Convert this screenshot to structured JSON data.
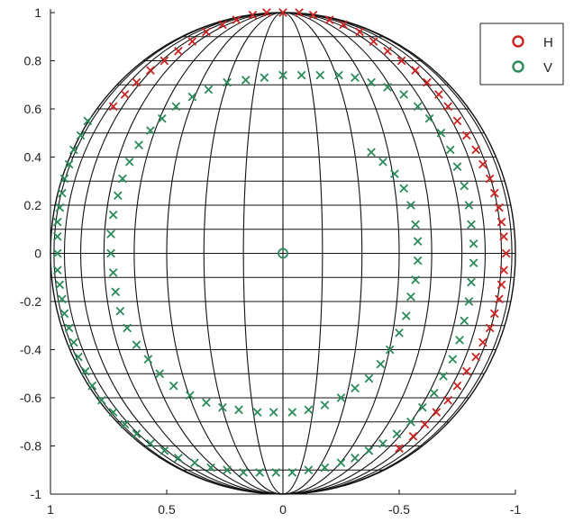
{
  "chart_data": {
    "type": "scatter",
    "title": "",
    "xlabel": "",
    "ylabel": "",
    "xlim": [
      1,
      -1
    ],
    "ylim": [
      -1,
      1
    ],
    "x_reversed": true,
    "x_ticks": [
      1,
      0.5,
      0,
      -0.5,
      -1
    ],
    "x_tick_labels": [
      "1",
      "0.5",
      "0",
      "-0.5",
      "-1"
    ],
    "y_ticks": [
      1,
      0.8,
      0.6,
      0.4,
      0.2,
      0,
      -0.2,
      -0.4,
      -0.6,
      -0.8,
      -1
    ],
    "y_tick_labels": [
      "1",
      "0.8",
      "0.6",
      "0.4",
      "0.2",
      "0",
      "-0.2",
      "-0.4",
      "-0.6",
      "-0.8",
      "-1"
    ],
    "grid": "sphere wireframe (meridians and latitude lines)",
    "legend_position": "top-right",
    "legend": [
      {
        "label": "H",
        "marker": "o",
        "color": "#cc2222"
      },
      {
        "label": "V",
        "marker": "o",
        "color": "#2a8a5a"
      }
    ],
    "series": [
      {
        "name": "H",
        "color": "#cc2222",
        "marker": "x",
        "points": [
          [
            0.73,
            0.61
          ],
          [
            0.68,
            0.66
          ],
          [
            0.63,
            0.71
          ],
          [
            0.57,
            0.76
          ],
          [
            0.51,
            0.8
          ],
          [
            0.45,
            0.84
          ],
          [
            0.39,
            0.88
          ],
          [
            0.33,
            0.92
          ],
          [
            0.26,
            0.95
          ],
          [
            0.2,
            0.97
          ],
          [
            0.13,
            0.99
          ],
          [
            0.07,
            1.0
          ],
          [
            0.0,
            1.0
          ],
          [
            -0.07,
            1.0
          ],
          [
            -0.13,
            0.99
          ],
          [
            -0.2,
            0.97
          ],
          [
            -0.26,
            0.95
          ],
          [
            -0.33,
            0.92
          ],
          [
            -0.39,
            0.88
          ],
          [
            -0.45,
            0.84
          ],
          [
            -0.51,
            0.8
          ],
          [
            -0.57,
            0.76
          ],
          [
            -0.62,
            0.71
          ],
          [
            -0.67,
            0.66
          ],
          [
            -0.71,
            0.61
          ],
          [
            -0.75,
            0.55
          ],
          [
            -0.79,
            0.49
          ],
          [
            -0.83,
            0.43
          ],
          [
            -0.86,
            0.37
          ],
          [
            -0.89,
            0.31
          ],
          [
            -0.91,
            0.25
          ],
          [
            -0.93,
            0.19
          ],
          [
            -0.94,
            0.13
          ],
          [
            -0.95,
            0.07
          ],
          [
            -0.96,
            0.0
          ],
          [
            -0.95,
            -0.07
          ],
          [
            -0.94,
            -0.13
          ],
          [
            -0.93,
            -0.19
          ],
          [
            -0.91,
            -0.25
          ],
          [
            -0.89,
            -0.31
          ],
          [
            -0.86,
            -0.37
          ],
          [
            -0.83,
            -0.43
          ],
          [
            -0.79,
            -0.49
          ],
          [
            -0.75,
            -0.55
          ],
          [
            -0.71,
            -0.61
          ],
          [
            -0.66,
            -0.66
          ],
          [
            -0.61,
            -0.71
          ],
          [
            -0.56,
            -0.76
          ],
          [
            -0.5,
            -0.81
          ]
        ]
      },
      {
        "name": "V",
        "color": "#2a8a5a",
        "marker": "x",
        "points": [
          [
            0.84,
            0.55
          ],
          [
            0.87,
            0.49
          ],
          [
            0.9,
            0.43
          ],
          [
            0.92,
            0.37
          ],
          [
            0.94,
            0.31
          ],
          [
            0.95,
            0.25
          ],
          [
            0.96,
            0.19
          ],
          [
            0.97,
            0.13
          ],
          [
            0.97,
            0.07
          ],
          [
            0.97,
            0.0
          ],
          [
            0.97,
            -0.07
          ],
          [
            0.96,
            -0.13
          ],
          [
            0.95,
            -0.19
          ],
          [
            0.94,
            -0.25
          ],
          [
            0.92,
            -0.31
          ],
          [
            0.9,
            -0.37
          ],
          [
            0.88,
            -0.43
          ],
          [
            0.85,
            -0.49
          ],
          [
            0.82,
            -0.55
          ],
          [
            0.78,
            -0.61
          ],
          [
            0.73,
            -0.66
          ],
          [
            0.68,
            -0.71
          ],
          [
            0.63,
            -0.75
          ],
          [
            0.57,
            -0.79
          ],
          [
            0.51,
            -0.82
          ],
          [
            0.45,
            -0.85
          ],
          [
            0.38,
            -0.87
          ],
          [
            0.31,
            -0.89
          ],
          [
            0.24,
            -0.9
          ],
          [
            0.17,
            -0.91
          ],
          [
            0.1,
            -0.91
          ],
          [
            0.03,
            -0.91
          ],
          [
            -0.04,
            -0.91
          ],
          [
            -0.11,
            -0.9
          ],
          [
            -0.18,
            -0.89
          ],
          [
            -0.25,
            -0.87
          ],
          [
            -0.31,
            -0.85
          ],
          [
            -0.37,
            -0.82
          ],
          [
            -0.43,
            -0.79
          ],
          [
            -0.49,
            -0.75
          ],
          [
            -0.55,
            -0.7
          ],
          [
            -0.6,
            -0.64
          ],
          [
            -0.65,
            -0.58
          ],
          [
            -0.69,
            -0.51
          ],
          [
            -0.73,
            -0.44
          ],
          [
            -0.76,
            -0.36
          ],
          [
            -0.78,
            -0.28
          ],
          [
            -0.8,
            -0.2
          ],
          [
            -0.81,
            -0.12
          ],
          [
            -0.82,
            -0.04
          ],
          [
            -0.82,
            0.04
          ],
          [
            -0.81,
            0.12
          ],
          [
            -0.8,
            0.2
          ],
          [
            -0.78,
            0.28
          ],
          [
            -0.75,
            0.36
          ],
          [
            -0.72,
            0.43
          ],
          [
            -0.68,
            0.5
          ],
          [
            -0.63,
            0.56
          ],
          [
            -0.58,
            0.61
          ],
          [
            -0.52,
            0.66
          ],
          [
            -0.45,
            0.69
          ],
          [
            -0.38,
            0.71
          ],
          [
            -0.31,
            0.73
          ],
          [
            -0.24,
            0.74
          ],
          [
            -0.16,
            0.74
          ],
          [
            -0.08,
            0.74
          ],
          [
            0.0,
            0.74
          ],
          [
            0.08,
            0.73
          ],
          [
            0.16,
            0.72
          ],
          [
            0.24,
            0.71
          ],
          [
            0.32,
            0.68
          ],
          [
            0.39,
            0.65
          ],
          [
            0.46,
            0.61
          ],
          [
            0.52,
            0.56
          ],
          [
            0.57,
            0.51
          ],
          [
            0.62,
            0.45
          ],
          [
            0.66,
            0.38
          ],
          [
            0.69,
            0.31
          ],
          [
            0.71,
            0.24
          ],
          [
            0.73,
            0.16
          ],
          [
            0.74,
            0.08
          ],
          [
            0.74,
            0.0
          ],
          [
            0.73,
            -0.08
          ],
          [
            0.72,
            -0.16
          ],
          [
            0.7,
            -0.24
          ],
          [
            0.67,
            -0.31
          ],
          [
            0.63,
            -0.38
          ],
          [
            0.58,
            -0.44
          ],
          [
            0.53,
            -0.5
          ],
          [
            0.47,
            -0.55
          ],
          [
            0.4,
            -0.59
          ],
          [
            0.33,
            -0.62
          ],
          [
            0.26,
            -0.64
          ],
          [
            0.19,
            -0.65
          ],
          [
            0.11,
            -0.66
          ],
          [
            0.04,
            -0.66
          ],
          [
            -0.04,
            -0.66
          ],
          [
            -0.11,
            -0.65
          ],
          [
            -0.18,
            -0.63
          ],
          [
            -0.25,
            -0.6
          ],
          [
            -0.31,
            -0.56
          ],
          [
            -0.37,
            -0.52
          ],
          [
            -0.42,
            -0.46
          ],
          [
            -0.46,
            -0.4
          ],
          [
            -0.5,
            -0.33
          ],
          [
            -0.53,
            -0.26
          ],
          [
            -0.55,
            -0.18
          ],
          [
            -0.57,
            -0.11
          ],
          [
            -0.58,
            -0.03
          ],
          [
            -0.58,
            0.05
          ],
          [
            -0.57,
            0.12
          ],
          [
            -0.55,
            0.2
          ],
          [
            -0.52,
            0.27
          ],
          [
            -0.48,
            0.33
          ],
          [
            -0.43,
            0.38
          ],
          [
            -0.38,
            0.42
          ]
        ]
      },
      {
        "name": "V",
        "color": "#2a8a5a",
        "marker": "o",
        "points": [
          [
            0.0,
            0.0
          ]
        ]
      }
    ]
  }
}
